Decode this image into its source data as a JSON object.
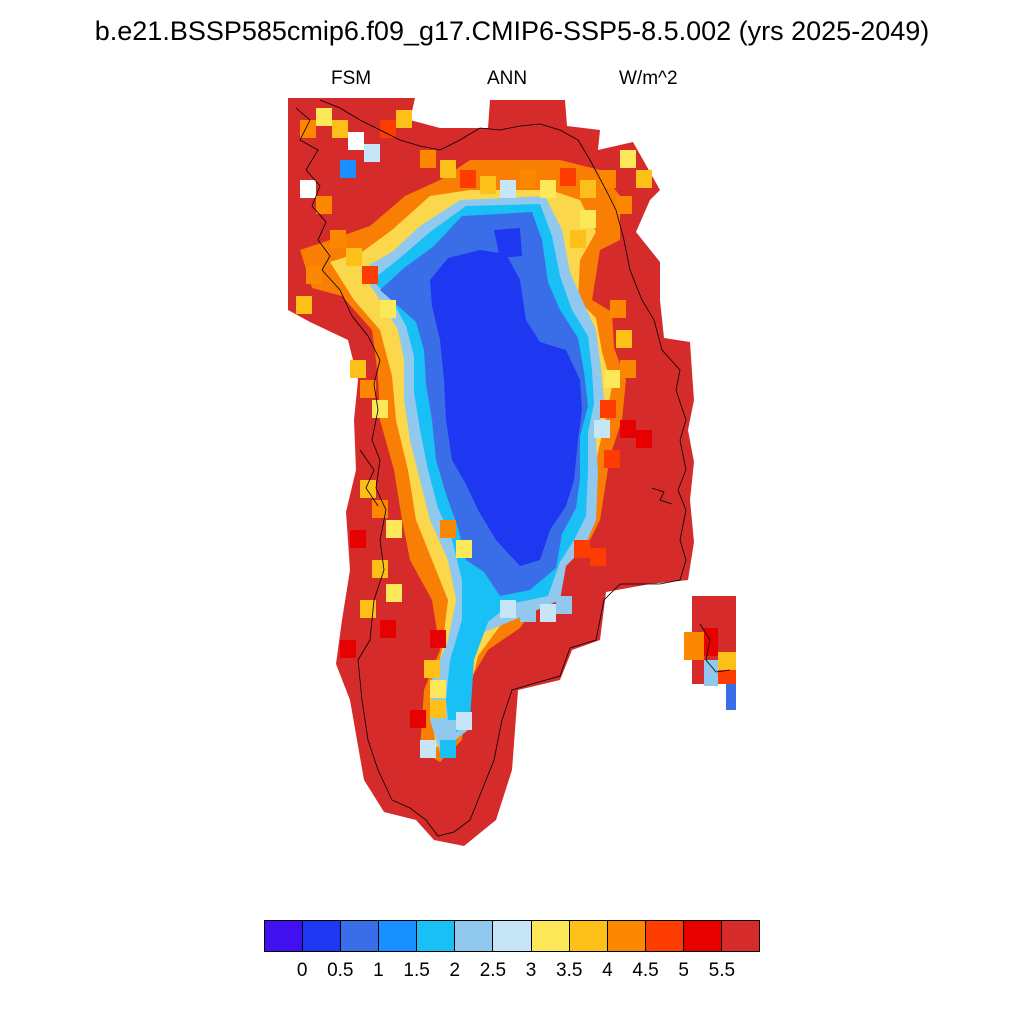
{
  "title": "b.e21.BSSP585cmip6.f09_g17.CMIP6-SSP5-8.5.002 (yrs 2025-2049)",
  "subtitle": {
    "left": "FSM",
    "center": "ANN",
    "right": "W/m^2"
  },
  "colorbar": {
    "colors": [
      "#4010f0",
      "#1e37f0",
      "#3a6ee8",
      "#1890ff",
      "#18c0f5",
      "#90c8ee",
      "#c6e6f8",
      "#fce858",
      "#fcc018",
      "#fc8800",
      "#fc3c00",
      "#e60000",
      "#d52b2b"
    ],
    "labels": [
      "0",
      "0.5",
      "1",
      "1.5",
      "2",
      "2.5",
      "3",
      "3.5",
      "4",
      "4.5",
      "5",
      "5.5"
    ]
  }
}
